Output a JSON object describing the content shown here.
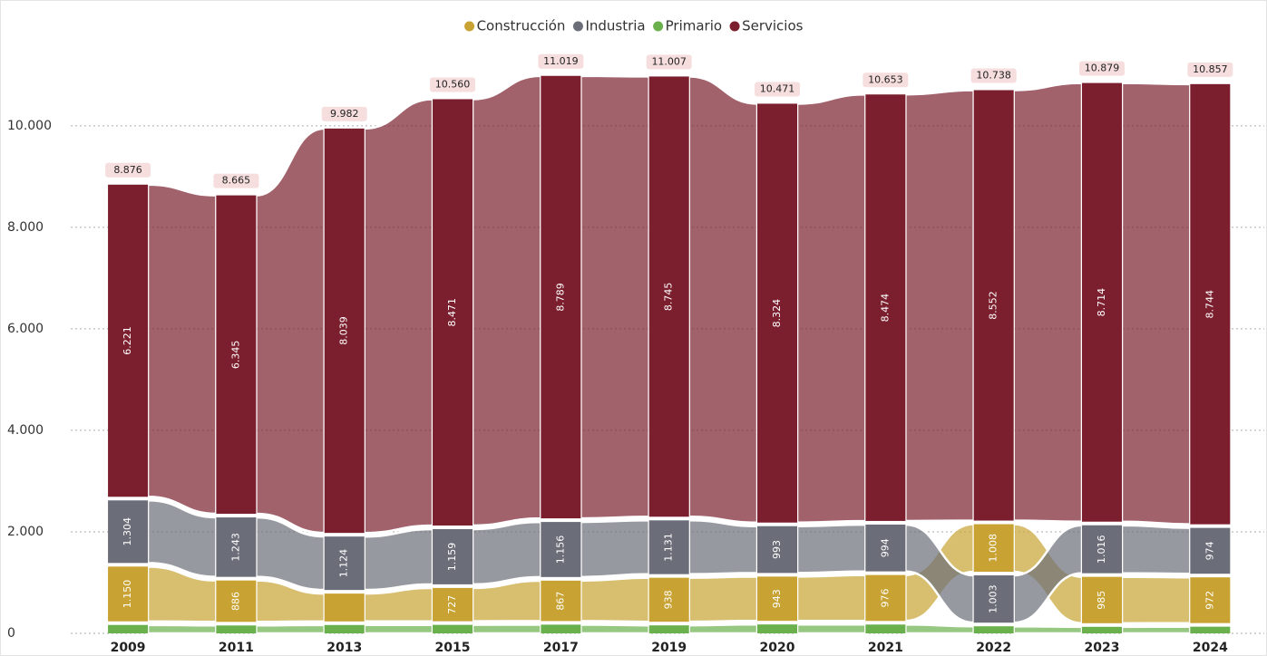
{
  "chart_data": {
    "type": "ribbon",
    "categories": [
      "2009",
      "2011",
      "2013",
      "2015",
      "2017",
      "2019",
      "2020",
      "2021",
      "2022",
      "2023",
      "2024"
    ],
    "series": [
      {
        "name": "Construcción",
        "color": "#c8a232",
        "values": [
          1150,
          886,
          619,
          727,
          867,
          938,
          943,
          976,
          1008,
          985,
          972
        ],
        "value_labels": [
          "1.150",
          "886",
          null,
          "727",
          "867",
          "938",
          "943",
          "976",
          "1.008",
          "985",
          "972"
        ]
      },
      {
        "name": "Industria",
        "color": "#6b6e78",
        "values": [
          1304,
          1243,
          1124,
          1159,
          1156,
          1131,
          993,
          994,
          1003,
          1016,
          974
        ],
        "value_labels": [
          "1.304",
          "1.243",
          "1.124",
          "1.159",
          "1.156",
          "1.131",
          "993",
          "994",
          "1.003",
          "1.016",
          "974"
        ]
      },
      {
        "name": "Primario",
        "color": "#6ab04c",
        "values": [
          201,
          191,
          200,
          203,
          207,
          193,
          211,
          209,
          175,
          164,
          167
        ]
      },
      {
        "name": "Servicios",
        "color": "#7b1f2e",
        "values": [
          6221,
          6345,
          8039,
          8471,
          8789,
          8745,
          8324,
          8474,
          8552,
          8714,
          8744
        ],
        "value_labels": [
          "6.221",
          "6.345",
          "8.039",
          "8.471",
          "8.789",
          "8.745",
          "8.324",
          "8.474",
          "8.552",
          "8.714",
          "8.744"
        ]
      }
    ],
    "totals": [
      8876,
      8665,
      9982,
      10560,
      11019,
      11007,
      10471,
      10653,
      10738,
      10879,
      10857
    ],
    "totals_labels": [
      "8.876",
      "8.665",
      "9.982",
      "10.560",
      "11.019",
      "11.007",
      "10.471",
      "10.653",
      "10.738",
      "10.879",
      "10.857"
    ],
    "ylim": [
      0,
      12300
    ],
    "yticks": [
      0,
      {
        "value": 2000,
        "label": "2.000"
      },
      {
        "value": 4000,
        "label": "4.000"
      },
      {
        "value": 6000,
        "label": "6.000"
      },
      {
        "value": 8000,
        "label": "8.000"
      },
      {
        "value": 10000,
        "label": "10.000"
      }
    ],
    "grid": true,
    "legend": "top"
  }
}
